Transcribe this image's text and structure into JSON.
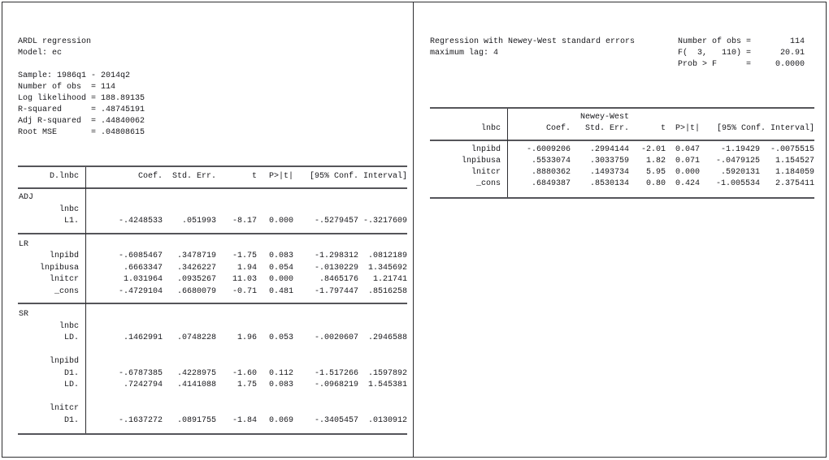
{
  "left_panel": {
    "heading_lines": [
      "ARDL regression",
      "Model: ec",
      "",
      "Sample: 1986q1 - 2014q2",
      "Number of obs  = 114",
      "Log likelihood = 188.89135",
      "R-squared      = .48745191",
      "Adj R-squared  = .44840062",
      "Root MSE       = .04808615"
    ],
    "table": {
      "header": {
        "depvar": "D.lnbc",
        "coef": "Coef.",
        "se": "Std. Err.",
        "t": "t",
        "p": "P>|t|",
        "ci": "[95% Conf. Interval]"
      },
      "rows": [
        {
          "label": "ADJ"
        },
        {
          "label": "lnbc"
        },
        {
          "var": "L1.",
          "coef": "-.4248533",
          "se": ".051993",
          "t": "-8.17",
          "p": "0.000",
          "lo": "-.5279457",
          "hi": "-.3217609"
        },
        {
          "label": "LR"
        },
        {
          "var": "lnpibd",
          "coef": "-.6085467",
          "se": ".3478719",
          "t": "-1.75",
          "p": "0.083",
          "lo": "-1.298312",
          "hi": ".0812189"
        },
        {
          "var": "lnpibusa",
          "coef": ".6663347",
          "se": ".3426227",
          "t": "1.94",
          "p": "0.054",
          "lo": "-.0130229",
          "hi": "1.345692"
        },
        {
          "var": "lnitcr",
          "coef": "1.031964",
          "se": ".0935267",
          "t": "11.03",
          "p": "0.000",
          "lo": ".8465176",
          "hi": "1.21741"
        },
        {
          "var": "_cons",
          "coef": "-.4729104",
          "se": ".6680079",
          "t": "-0.71",
          "p": "0.481",
          "lo": "-1.797447",
          "hi": ".8516258"
        },
        {
          "label": "SR"
        },
        {
          "label": "lnbc"
        },
        {
          "var": "LD.",
          "coef": ".1462991",
          "se": ".0748228",
          "t": "1.96",
          "p": "0.053",
          "lo": "-.0020607",
          "hi": ".2946588"
        },
        {
          "label": "lnpibd"
        },
        {
          "var": "D1.",
          "coef": "-.6787385",
          "se": ".4228975",
          "t": "-1.60",
          "p": "0.112",
          "lo": "-1.517266",
          "hi": ".1597892"
        },
        {
          "var": "LD.",
          "coef": ".7242794",
          "se": ".4141088",
          "t": "1.75",
          "p": "0.083",
          "lo": "-.0968219",
          "hi": "1.545381"
        },
        {
          "label": "lnitcr"
        },
        {
          "var": "D1.",
          "coef": "-.1637272",
          "se": ".0891755",
          "t": "-1.84",
          "p": "0.069",
          "lo": "-.3405457",
          "hi": ".0130912"
        }
      ]
    }
  },
  "right_panel": {
    "heading_lines": [
      "Regression with Newey-West standard errors",
      "maximum lag: 4"
    ],
    "stats_lines": [
      "Number of obs =        114",
      "F(  3,   110) =      20.91",
      "Prob > F      =     0.0000"
    ],
    "table": {
      "header": {
        "newey": "Newey-West",
        "depvar": "lnbc",
        "coef": "Coef.",
        "se": "Std. Err.",
        "t": "t",
        "p": "P>|t|",
        "ci": "[95% Conf. Interval]"
      },
      "rows": [
        {
          "var": "lnpibd",
          "coef": "-.6009206",
          "se": ".2994144",
          "t": "-2.01",
          "p": "0.047",
          "lo": "-1.19429",
          "hi": "-.0075515"
        },
        {
          "var": "lnpibusa",
          "coef": ".5533074",
          "se": ".3033759",
          "t": "1.82",
          "p": "0.071",
          "lo": "-.0479125",
          "hi": "1.154527"
        },
        {
          "var": "lnitcr",
          "coef": ".8880362",
          "se": ".1493734",
          "t": "5.95",
          "p": "0.000",
          "lo": ".5920131",
          "hi": "1.184059"
        },
        {
          "var": "_cons",
          "coef": ".6849387",
          "se": ".8530134",
          "t": "0.80",
          "p": "0.424",
          "lo": "-1.005534",
          "hi": "2.375411"
        }
      ]
    }
  }
}
